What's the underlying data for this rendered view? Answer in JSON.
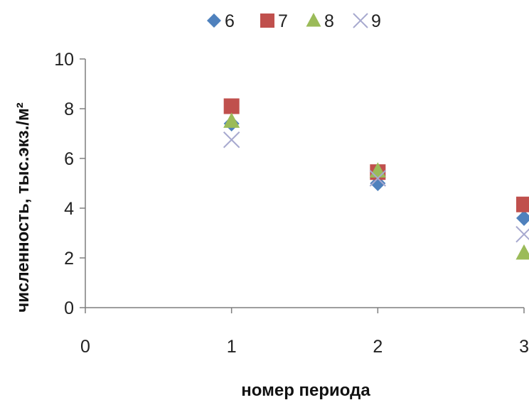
{
  "chart_data": {
    "type": "scatter",
    "title": "",
    "xlabel": "номер периода",
    "ylabel": "численность, тыс.экз./м²",
    "xlim": [
      0,
      3
    ],
    "ylim": [
      0,
      10
    ],
    "x_ticks": [
      "0",
      "1",
      "2",
      "3"
    ],
    "y_ticks": [
      "0",
      "2",
      "4",
      "6",
      "8",
      "10"
    ],
    "grid": false,
    "legend_position": "top",
    "series": [
      {
        "name": "6",
        "marker": "diamond",
        "color": "#4f81bd",
        "x": [
          1,
          2,
          3
        ],
        "y": [
          7.4,
          5.0,
          3.6
        ]
      },
      {
        "name": "7",
        "marker": "square",
        "color": "#c0504d",
        "x": [
          1,
          2,
          3
        ],
        "y": [
          8.1,
          5.45,
          4.15
        ]
      },
      {
        "name": "8",
        "marker": "triangle",
        "color": "#9bbb59",
        "x": [
          1,
          2,
          3
        ],
        "y": [
          7.5,
          5.5,
          2.2
        ]
      },
      {
        "name": "9",
        "marker": "x",
        "color": "#a7a9cf",
        "x": [
          1,
          2,
          3
        ],
        "y": [
          6.75,
          5.2,
          2.95
        ]
      }
    ]
  }
}
